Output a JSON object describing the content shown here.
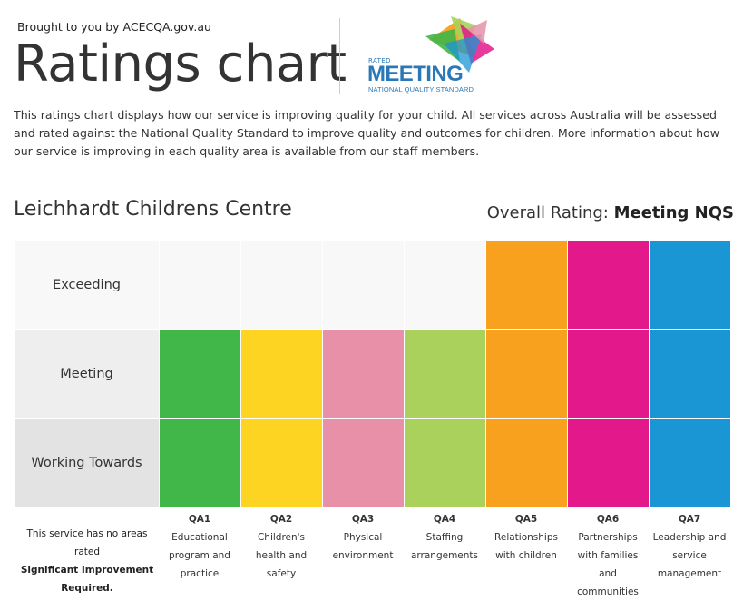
{
  "header": {
    "brought_by": "Brought to you by ACECQA.gov.au",
    "title": "Ratings chart"
  },
  "logo": {
    "rated": "RATED",
    "meeting": "MEETING",
    "nqs": "NATIONAL QUALITY STANDARD"
  },
  "intro": "This ratings chart displays how our service is improving quality for your child. All services across Australia will be assessed and rated against the National Quality Standard to improve quality and outcomes for children. More information about how our service is improving in each quality area is available from our staff members.",
  "service": {
    "name": "Leichhardt Childrens Centre",
    "overall_label": "Overall Rating: ",
    "overall_value": "Meeting NQS"
  },
  "note": {
    "line1": "This service has no areas rated",
    "line2": "Significant Improvement",
    "line3": "Required."
  },
  "chart_data": {
    "type": "bar",
    "levels": [
      "Working Towards",
      "Meeting",
      "Exceeding"
    ],
    "categories": [
      "QA1",
      "QA2",
      "QA3",
      "QA4",
      "QA5",
      "QA6",
      "QA7"
    ],
    "category_names": [
      "Educational program and practice",
      "Children's health and safety",
      "Physical environment",
      "Staffing arrangements",
      "Relationships with children",
      "Partnerships with families and communities",
      "Leadership and service management"
    ],
    "ratings": [
      "Meeting",
      "Meeting",
      "Meeting",
      "Meeting",
      "Exceeding",
      "Exceeding",
      "Exceeding"
    ],
    "values": [
      2,
      2,
      2,
      2,
      3,
      3,
      3
    ],
    "colors": [
      "#41b649",
      "#fdd422",
      "#e890a8",
      "#a9d15b",
      "#f8a11e",
      "#e3188b",
      "#1a96d4"
    ],
    "empty_colors": [
      "#f8f8f8",
      "#f8f8f8",
      "#f8f8f8"
    ],
    "label_colors": [
      "#e3e3e3",
      "#eeeeee",
      "#f8f8f8"
    ],
    "ylim": [
      0,
      3
    ]
  }
}
